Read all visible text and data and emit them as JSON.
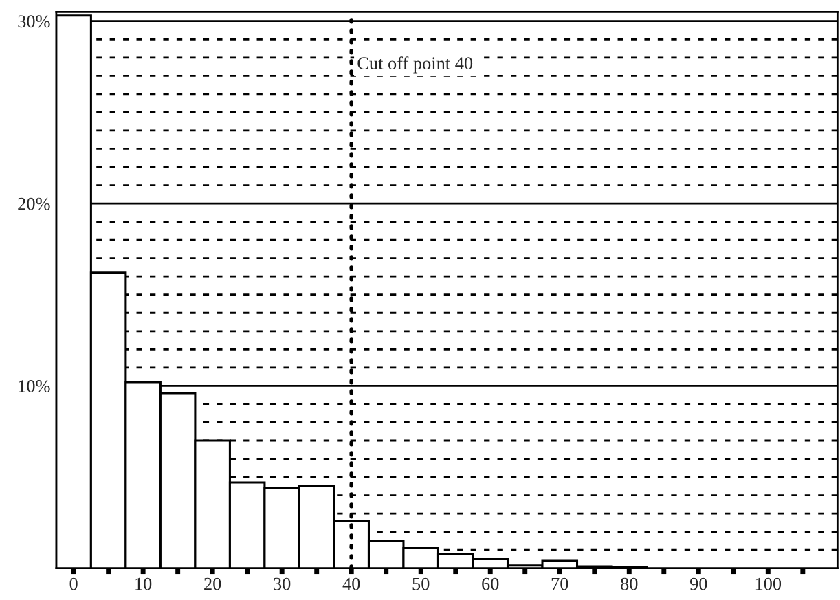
{
  "chart_data": {
    "type": "histogram",
    "bins": [
      -2.5,
      2.5,
      7.5,
      12.5,
      17.5,
      22.5,
      27.5,
      32.5,
      37.5,
      42.5,
      47.5,
      52.5,
      57.5,
      62.5,
      67.5,
      72.5,
      77.5,
      82.5,
      87.5,
      92.5,
      97.5,
      102.5,
      107.5
    ],
    "values": [
      30.3,
      16.2,
      10.2,
      9.6,
      7.0,
      4.7,
      4.4,
      4.5,
      2.6,
      1.5,
      1.1,
      0.8,
      0.5,
      0.15,
      0.4,
      0.1,
      0.05,
      0,
      0,
      0,
      0,
      0
    ],
    "color": "#ffffff",
    "xlim": [
      -2.5,
      110
    ],
    "xticks": [
      0,
      {
        "value": 5,
        "label": null
      },
      10,
      {
        "value": 15,
        "label": null
      },
      20,
      {
        "value": 25,
        "label": null
      },
      30,
      {
        "value": 35,
        "label": null
      },
      40,
      {
        "value": 45,
        "label": null
      },
      50,
      {
        "value": 55,
        "label": null
      },
      60,
      {
        "value": 65,
        "label": null
      },
      70,
      {
        "value": 75,
        "label": null
      },
      80,
      {
        "value": 85,
        "label": null
      },
      90,
      {
        "value": 95,
        "label": null
      },
      100,
      {
        "value": 105,
        "label": null
      }
    ],
    "ylim": [
      0,
      30.5
    ],
    "yticks": [
      {
        "value": 10,
        "label": "10%"
      },
      {
        "value": 20,
        "label": "20%"
      },
      {
        "value": 30,
        "label": "30%"
      }
    ],
    "grid": "y",
    "ref_lines": [
      {
        "axis": "x",
        "value": 40,
        "label": "Cut off point 40",
        "line_style": "dotted",
        "color": "#000000"
      }
    ]
  }
}
